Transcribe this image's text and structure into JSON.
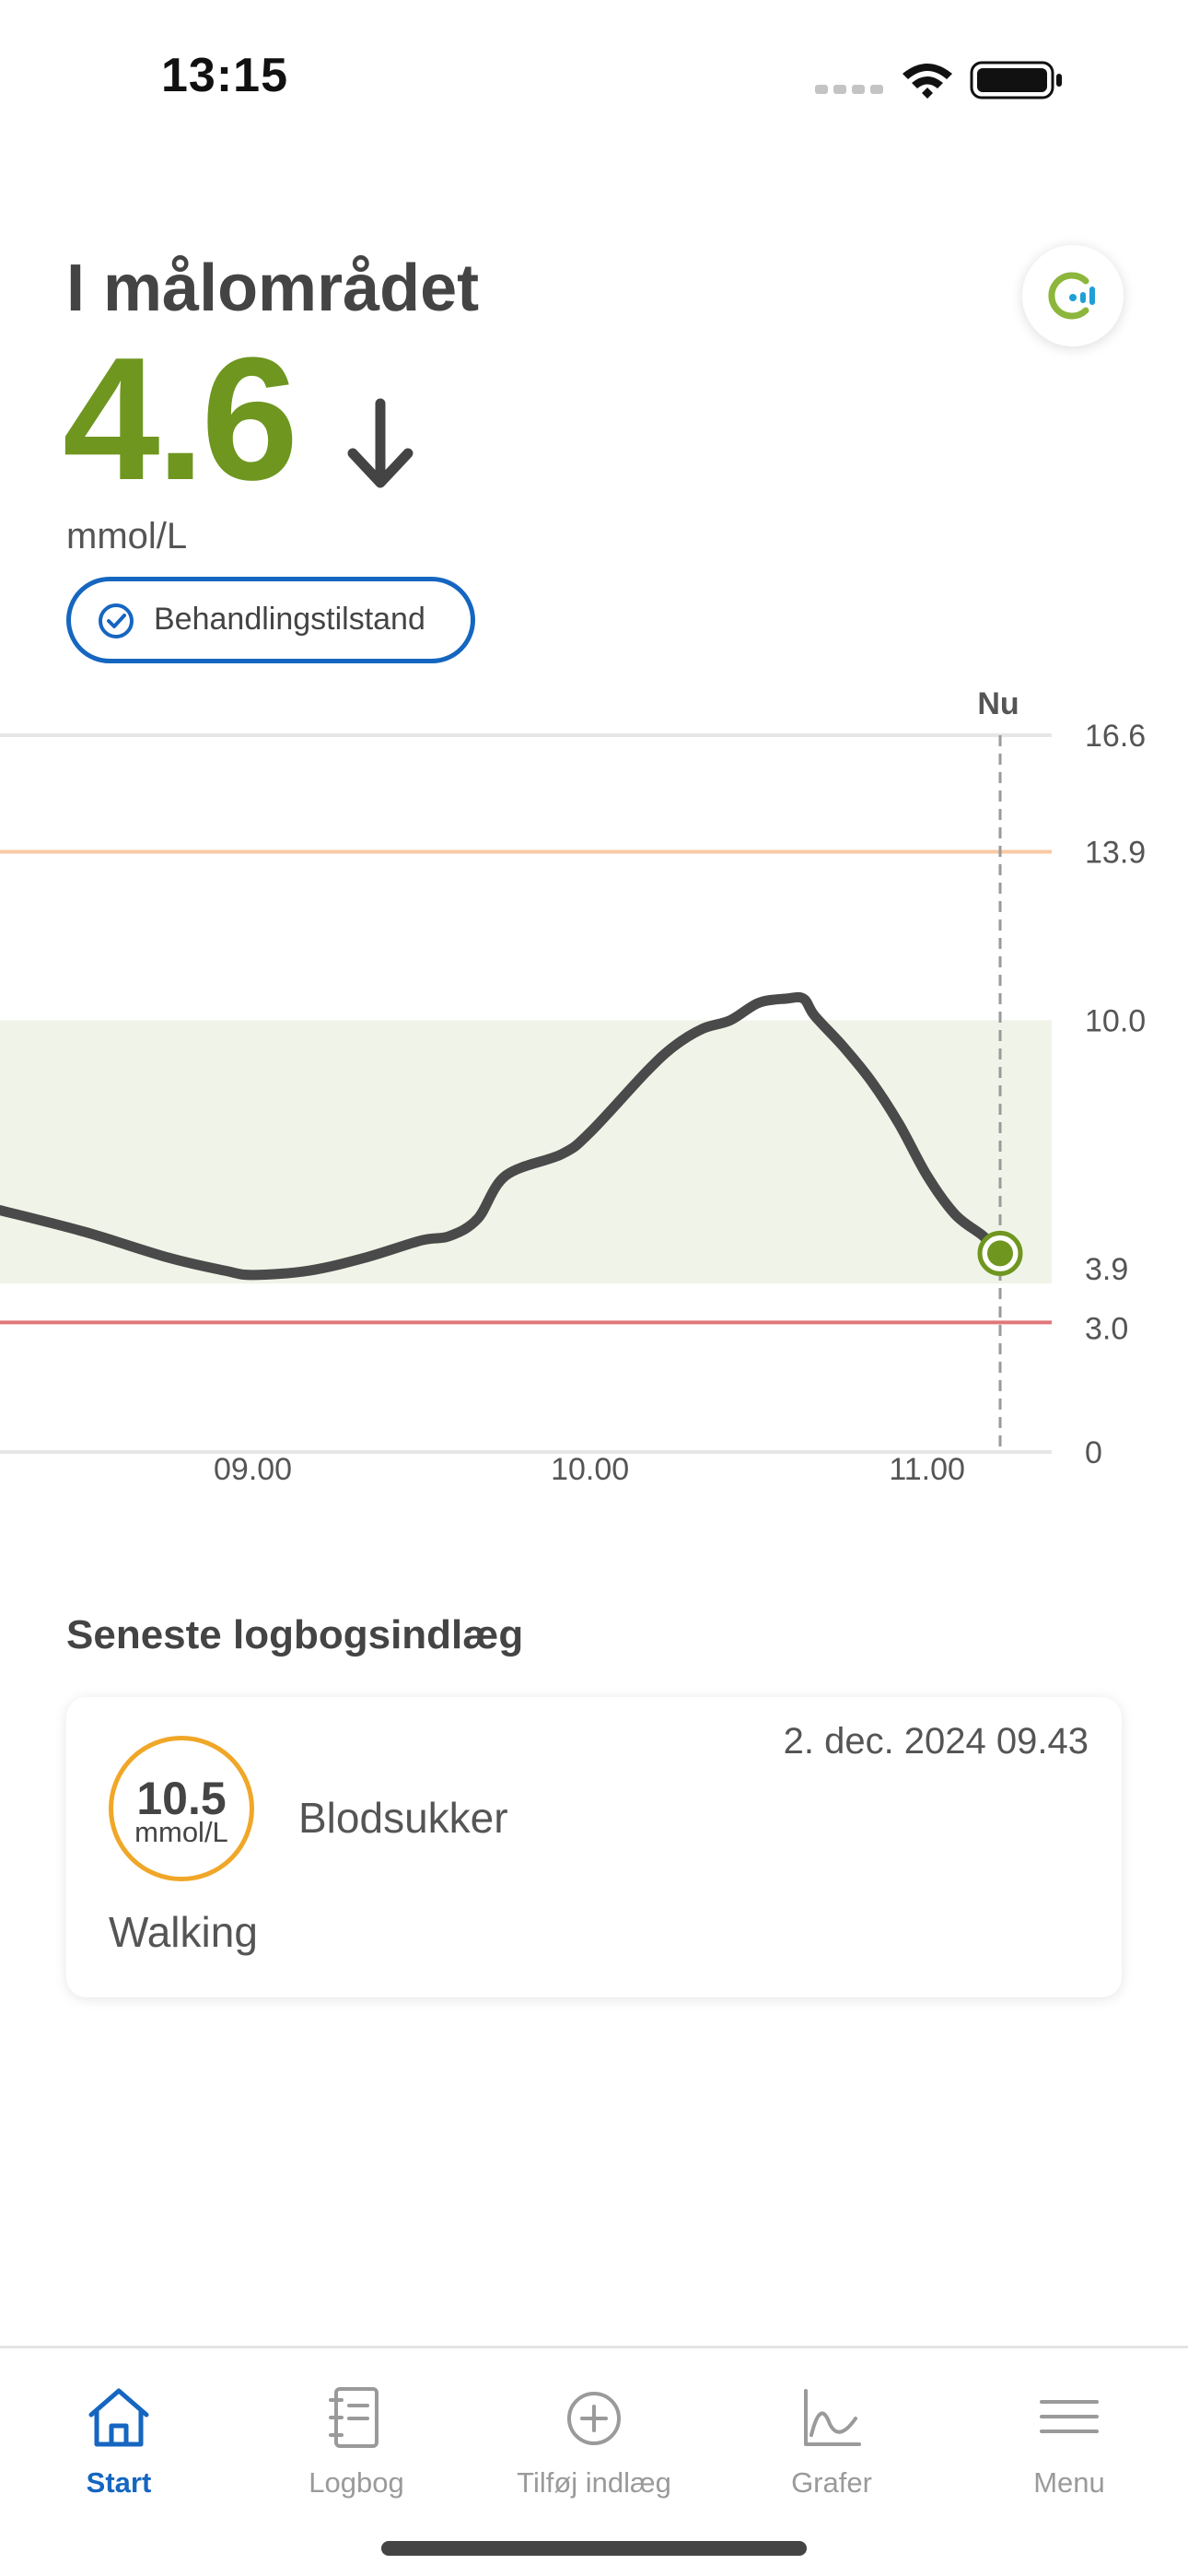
{
  "status_bar": {
    "time": "13:15"
  },
  "header": {
    "title": "I målområdet",
    "reading": "4.6",
    "unit": "mmol/L",
    "trend_icon": "arrow-down-icon",
    "status_label": "Behandlingstilstand",
    "sync_icon": "sensor-sync-icon"
  },
  "colors": {
    "in_range": "#6f961f",
    "accent": "#1566c0",
    "high_line": "#f7c9a3",
    "low_line": "#e0777a",
    "target_band": "#f0f4e8",
    "log_circle": "#f0a728"
  },
  "chart_data": {
    "type": "line",
    "now_label": "Nu",
    "y_ticks": [
      "16.6",
      "13.9",
      "10.0",
      "3.9",
      "3.0",
      "0"
    ],
    "x_ticks": [
      "09.00",
      "10.00",
      "11.00"
    ],
    "ylim": [
      0,
      16.6
    ],
    "target_range": [
      3.9,
      10.0
    ],
    "high_threshold": 13.9,
    "low_threshold": 3.0,
    "series": [
      {
        "x": [
          "08.15",
          "08.30",
          "08.45",
          "08.55",
          "09.00",
          "09.10",
          "09.20",
          "09.30",
          "09.35",
          "09.40",
          "09.45",
          "09.55",
          "10.00",
          "10.10",
          "10.15",
          "10.20",
          "10.25",
          "10.30",
          "10.35",
          "10.38",
          "10.40",
          "10.45",
          "10.50",
          "10.55",
          "11.00",
          "11.05",
          "11.10",
          "11.13"
        ],
        "values": [
          5.6,
          5.1,
          4.5,
          4.2,
          4.1,
          4.2,
          4.5,
          4.9,
          5.0,
          5.4,
          6.4,
          6.9,
          7.4,
          8.8,
          9.4,
          9.8,
          10.0,
          10.4,
          10.5,
          10.5,
          10.1,
          9.4,
          8.6,
          7.6,
          6.4,
          5.5,
          5.0,
          4.6
        ]
      }
    ],
    "current_value": 4.6
  },
  "logbook": {
    "section_title": "Seneste logbogsindlæg",
    "entry": {
      "date": "2. dec. 2024 09.43",
      "value": "10.5",
      "unit": "mmol/L",
      "type": "Blodsukker",
      "note": "Walking"
    }
  },
  "tabs": [
    {
      "label": "Start",
      "icon": "home-icon",
      "active": true
    },
    {
      "label": "Logbog",
      "icon": "logbook-icon",
      "active": false
    },
    {
      "label": "Tilføj indlæg",
      "icon": "plus-circle-icon",
      "active": false
    },
    {
      "label": "Grafer",
      "icon": "graph-icon",
      "active": false
    },
    {
      "label": "Menu",
      "icon": "menu-icon",
      "active": false
    }
  ]
}
